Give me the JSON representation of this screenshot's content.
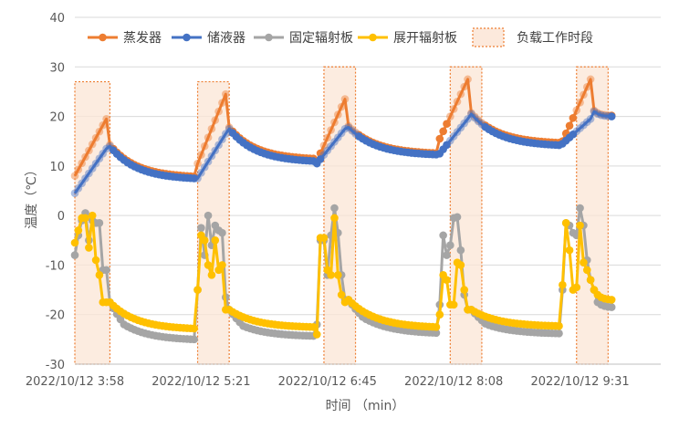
{
  "chart_data": {
    "type": "line",
    "xlabel": "时间 （min）",
    "ylabel": "温度（℃）",
    "ylim": [
      -30,
      40
    ],
    "yticks": [
      -30,
      -20,
      -10,
      0,
      10,
      20,
      30,
      40
    ],
    "grid": "horizontal",
    "legend_position": "top",
    "x_tick_labels": [
      "2022/10/12 3:58",
      "2022/10/12 5:21",
      "2022/10/12 6:45",
      "2022/10/12 8:08",
      "2022/10/12 9:31"
    ],
    "x_tick_indices": [
      0,
      36,
      72,
      108,
      144
    ],
    "x_count": 168,
    "load_periods": [
      [
        0,
        10
      ],
      [
        35,
        44
      ],
      [
        71,
        80
      ],
      [
        107,
        116
      ],
      [
        143,
        152
      ]
    ],
    "load_legend": "负载工作时段",
    "series": [
      {
        "name": "蒸发器",
        "color": "#ED7D31"
      },
      {
        "name": "储液器",
        "color": "#4472C4"
      },
      {
        "name": "固定辐射板",
        "color": "#A5A5A5"
      },
      {
        "name": "展开辐射板",
        "color": "#FFC000"
      }
    ],
    "cycles": [
      {
        "high_start": 8,
        "high_end": 19.5,
        "low_start": 4.5,
        "low_end": 13.5,
        "rise_len": 10,
        "decay_len": 25,
        "peak": 14.0,
        "end": 7.5,
        "peak_gap": 0.3,
        "end_gap": 0.4,
        "gray_spikes": [
          -8,
          -4,
          -1,
          0.5,
          -5,
          -1,
          -1.5,
          -1.5,
          -11
        ],
        "yellow_spikes": [
          -5.5,
          -3,
          -0.5,
          -0.5,
          -6.5,
          0,
          -9,
          -12,
          -17.5
        ],
        "cold_start": -17.5,
        "cold_end": -22.8,
        "gray_offset": 2.2
      },
      {
        "high_start": 10.5,
        "high_end": 24.5,
        "low_start": 7.5,
        "low_end": 16.5,
        "rise_len": 9,
        "decay_len": 25,
        "peak": 17.5,
        "end": 11,
        "peak_gap": 0.3,
        "end_gap": 0.5,
        "gray_spikes": [
          -15,
          -2.5,
          -8,
          0,
          -6,
          -2,
          -3,
          -3.5,
          -16.5
        ],
        "yellow_spikes": [
          -15,
          -4,
          -5,
          -10,
          -12,
          -5,
          -11,
          -10,
          -19
        ],
        "cold_start": -19,
        "cold_end": -22.5,
        "gray_offset": 1.8
      },
      {
        "high_start": 11,
        "high_end": 23.5,
        "low_start": 10.5,
        "low_end": 17.5,
        "rise_len": 9,
        "decay_len": 26,
        "peak": 17.8,
        "end": 12.3,
        "peak_gap": 0.3,
        "end_gap": 0.3,
        "gray_spikes": [
          -22,
          -5,
          -5,
          -12,
          -4,
          1.5,
          -3.5,
          -12,
          -17
        ],
        "yellow_spikes": [
          -24,
          -4.5,
          -4.5,
          -11,
          -12,
          -0.5,
          -12,
          -16,
          -17.5
        ],
        "cold_start": -17,
        "cold_end": -22.5,
        "gray_offset": 1.2
      },
      {
        "high_start": 15.5,
        "high_end": 27.5,
        "low_start": 12.5,
        "low_end": 19.5,
        "rise_len": 9,
        "decay_len": 26,
        "peak": 20.5,
        "end": 14.2,
        "peak_gap": 0.2,
        "end_gap": 0.5,
        "gray_spikes": [
          -18,
          -4,
          -8,
          -6,
          -0.5,
          -0.3,
          -7,
          -16,
          -19
        ],
        "yellow_spikes": [
          -20,
          -12,
          -13,
          -18,
          -18,
          -9.5,
          -10,
          -15,
          -19
        ],
        "cold_start": -19,
        "cold_end": -22.3,
        "gray_offset": 1.5
      },
      {
        "high_start": 15,
        "high_end": 27.5,
        "low_start": 14.5,
        "low_end": 19.5,
        "rise_len": 9,
        "decay_len": 6,
        "peak": 21,
        "end": 20,
        "peak_gap": 0.2,
        "end_gap": 0.2,
        "gray_spikes": [
          -15,
          -1.5,
          -2,
          -3.5,
          -4,
          1.5,
          -2,
          -9,
          -13
        ],
        "yellow_spikes": [
          -14,
          -1.5,
          -7,
          -15,
          -14.5,
          -2,
          -9.5,
          -11,
          -13
        ],
        "cold_start": -15,
        "cold_end": -17,
        "gray_offset": 1.5
      }
    ]
  }
}
